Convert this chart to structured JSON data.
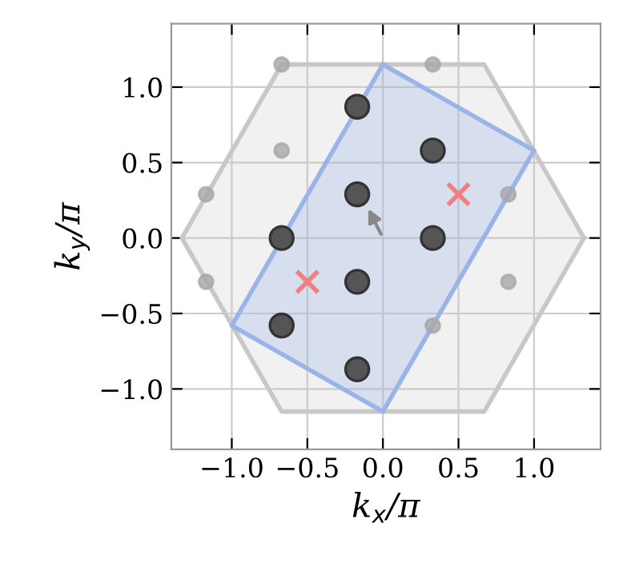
{
  "chart_data": {
    "type": "scatter",
    "xlabel": "k$_{x}$/π",
    "ylabel": "k$_{y}$/π",
    "xlim": [
      -1.4,
      1.44
    ],
    "ylim": [
      -1.4,
      1.42
    ],
    "xticks": [
      {
        "value": -1.0,
        "label": "−1.0"
      },
      {
        "value": -0.5,
        "label": "−0.5"
      },
      {
        "value": 0.0,
        "label": "0.0"
      },
      {
        "value": 0.5,
        "label": "0.5"
      },
      {
        "value": 1.0,
        "label": "1.0"
      }
    ],
    "yticks": [
      {
        "value": -1.0,
        "label": "−1.0"
      },
      {
        "value": -0.5,
        "label": "−0.5"
      },
      {
        "value": 0.0,
        "label": "0.0"
      },
      {
        "value": 0.5,
        "label": "0.5"
      },
      {
        "value": 1.0,
        "label": "1.0"
      }
    ],
    "grid": true,
    "series": [
      {
        "type": "area",
        "color": "#c8c8c8",
        "x": [
          1.33,
          0.67,
          -0.67,
          -1.33,
          -0.67,
          0.67,
          1.33
        ],
        "values": [
          0,
          1.15,
          1.15,
          0,
          -1.15,
          -1.15,
          0
        ]
      },
      {
        "type": "area",
        "color": "#9ab4e8",
        "x": [
          0,
          1.0,
          0,
          -1.0,
          0
        ],
        "values": [
          1.15,
          0.58,
          -1.15,
          -0.58,
          1.15
        ]
      },
      {
        "marker": "circle",
        "color": "#a8a8a8",
        "x": [
          -0.67,
          0.33,
          -0.67,
          -1.17,
          0.83,
          -1.17,
          0.83,
          0.33
        ],
        "values": [
          1.15,
          1.15,
          0.58,
          0.29,
          0.29,
          -0.29,
          -0.29,
          -0.58
        ]
      },
      {
        "marker": "circle",
        "color": "#555555",
        "x": [
          -0.17,
          0.33,
          -0.17,
          -0.67,
          0.33,
          -0.17,
          -0.67,
          -0.17
        ],
        "values": [
          0.87,
          0.58,
          0.29,
          0,
          0,
          -0.29,
          -0.58,
          -0.87
        ]
      },
      {
        "marker": "cross",
        "color": "#f08080",
        "x": [
          0.5,
          -0.5
        ],
        "values": [
          0.29,
          -0.29
        ]
      }
    ]
  }
}
